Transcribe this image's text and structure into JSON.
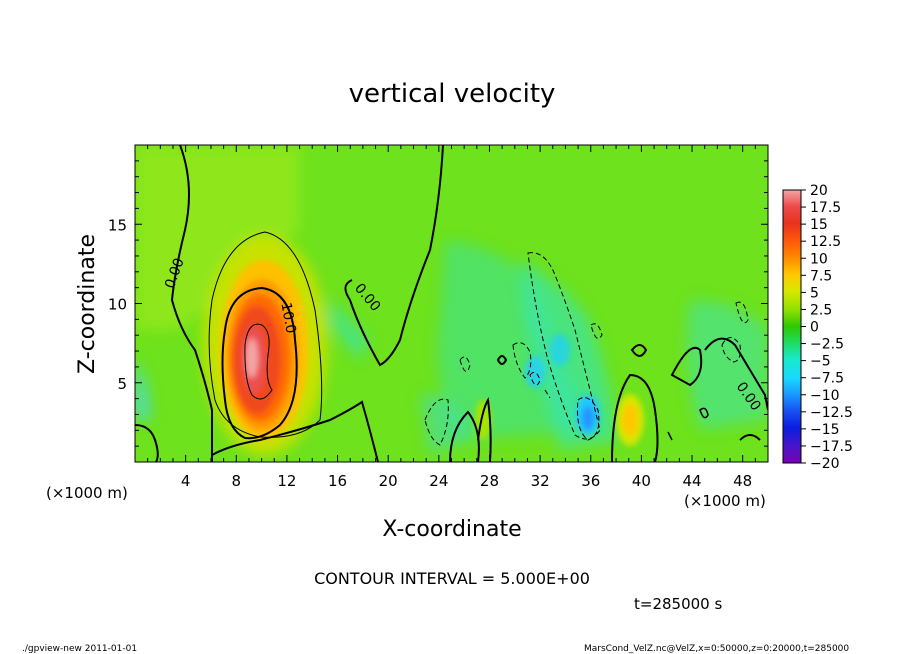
{
  "chart_data": {
    "type": "heatmap",
    "title": "vertical velocity",
    "xlabel": "X-coordinate",
    "ylabel": "Z-coordinate",
    "x_unit": "(×1000 m)",
    "x_unit_right": "(×1000 m)",
    "xlim": [
      0,
      50
    ],
    "ylim": [
      0,
      20
    ],
    "x_ticks": [
      "4",
      "8",
      "12",
      "16",
      "20",
      "24",
      "28",
      "32",
      "36",
      "40",
      "44",
      "48"
    ],
    "y_ticks": [
      "5",
      "10",
      "15"
    ],
    "contour_interval_text": "CONTOUR INTERVAL = 5.000E+00",
    "contour_labels": [
      "0.00",
      "10.0",
      "0.00",
      "0.00"
    ],
    "time_text": "t=285000 s",
    "footer_left": "./gpview-new  2011-01-01",
    "footer_right": "MarsCond_VelZ.nc@VelZ,x=0:50000,z=0:20000,t=285000",
    "colorbar": {
      "labels": [
        "20",
        "17.5",
        "15",
        "12.5",
        "10",
        "7.5",
        "5",
        "2.5",
        "0",
        "-2.5",
        "-5",
        "-7.5",
        "-10",
        "-12.5",
        "-15",
        "-17.5",
        "-20"
      ],
      "colors": [
        "#f4a6a6",
        "#ee4a4a",
        "#e8321e",
        "#ff5a0a",
        "#ff8c00",
        "#ffc800",
        "#d8e800",
        "#8ee000",
        "#2ec800",
        "#1edc62",
        "#18eaca",
        "#18d8ff",
        "#1898ff",
        "#1850f0",
        "#0a1ee0",
        "#4a14c8",
        "#7a00b4"
      ]
    },
    "features": [
      {
        "kind": "max",
        "x": 9.5,
        "z": 6.5,
        "value": 17.5
      },
      {
        "kind": "min",
        "x": 35.5,
        "z": 2.5,
        "value": -7.5
      },
      {
        "kind": "max",
        "x": 39,
        "z": 2.5,
        "value": 7.5
      }
    ]
  }
}
